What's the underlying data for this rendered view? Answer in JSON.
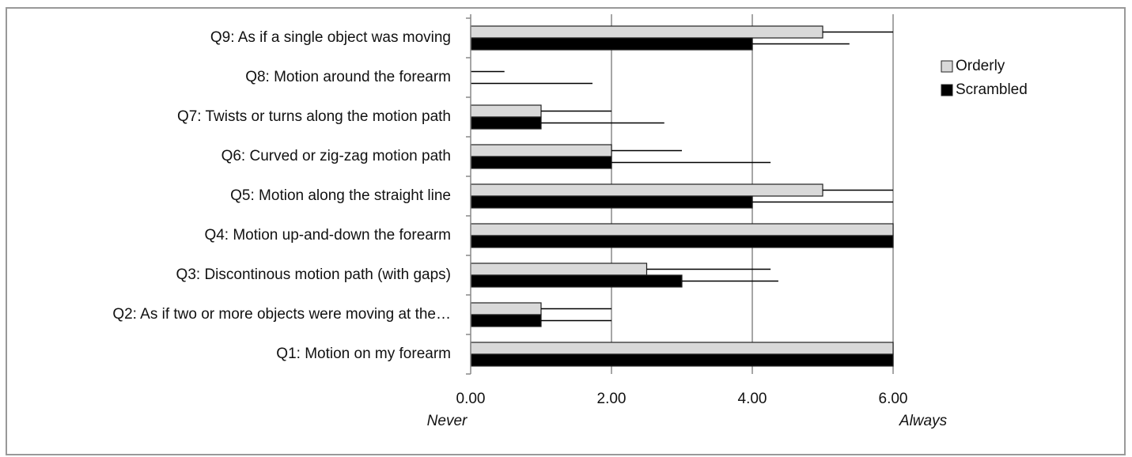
{
  "chart_data": {
    "type": "hbar",
    "categories": [
      "Q9: As if a single object was moving",
      "Q8: Motion around the forearm",
      "Q7: Twists or turns along the motion path",
      "Q6: Curved or zig-zag motion path",
      "Q5: Motion along the straight line",
      "Q4: Motion up-and-down the forearm",
      "Q3: Discontinous motion path (with gaps)",
      "Q2: As if two or more objects were moving at the…",
      "Q1: Motion on my forearm"
    ],
    "series": [
      {
        "name": "Orderly",
        "color": "#d9d9d9",
        "values": [
          5,
          0,
          1,
          2,
          5,
          6,
          2.5,
          1,
          6
        ],
        "errors": [
          1,
          0.48,
          1,
          1,
          1,
          0,
          1.76,
          1,
          0
        ]
      },
      {
        "name": "Scrambled",
        "color": "#000000",
        "values": [
          4,
          0,
          1,
          2,
          4,
          6,
          3,
          1,
          6
        ],
        "errors": [
          1.38,
          1.73,
          1.75,
          2.26,
          2,
          0,
          1.37,
          1,
          0
        ]
      }
    ],
    "xlim": [
      0,
      6
    ],
    "xticks": [
      {
        "value": 0,
        "label": "0.00"
      },
      {
        "value": 2,
        "label": "2.00"
      },
      {
        "value": 4,
        "label": "4.00"
      },
      {
        "value": 6,
        "label": "6.00"
      }
    ],
    "x_annotations": [
      "Never",
      "Always"
    ],
    "grid": true,
    "legend": "right"
  }
}
